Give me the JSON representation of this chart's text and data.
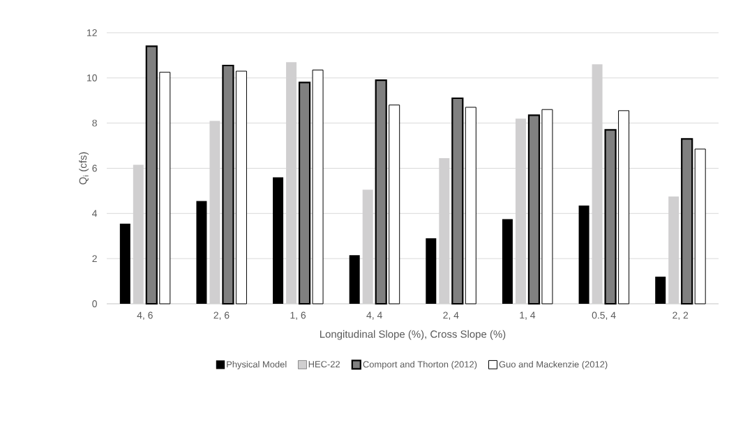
{
  "chart_data": {
    "type": "bar",
    "xlabel": "Longitudinal Slope (%), Cross Slope (%)",
    "ylabel": "Q$_{i}$ (cfs)",
    "categories": [
      "4, 6",
      "2, 6",
      "1, 6",
      "4, 4",
      "2, 4",
      "1, 4",
      "0.5, 4",
      "2, 2"
    ],
    "series": [
      {
        "name": "Physical Model",
        "color": "#000000",
        "values": [
          3.55,
          4.55,
          5.6,
          2.15,
          2.9,
          3.75,
          4.35,
          1.2
        ]
      },
      {
        "name": "HEC-22",
        "color": "#d0cfd0",
        "values": [
          6.15,
          8.1,
          10.7,
          5.05,
          6.45,
          8.2,
          10.6,
          4.75
        ]
      },
      {
        "name": "Comport and Thorton (2012)",
        "color": "#808080",
        "values": [
          11.4,
          10.55,
          9.8,
          9.9,
          9.1,
          8.35,
          7.7,
          7.3
        ]
      },
      {
        "name": "Guo and Mackenzie (2012)",
        "color": "#ffffff",
        "values": [
          10.25,
          10.3,
          10.35,
          8.8,
          8.7,
          8.6,
          8.55,
          6.85
        ]
      }
    ],
    "ylim": [
      0,
      12
    ],
    "yticks": [
      0,
      2,
      4,
      6,
      8,
      10,
      12
    ],
    "grid": "y",
    "legend": "bottom"
  }
}
